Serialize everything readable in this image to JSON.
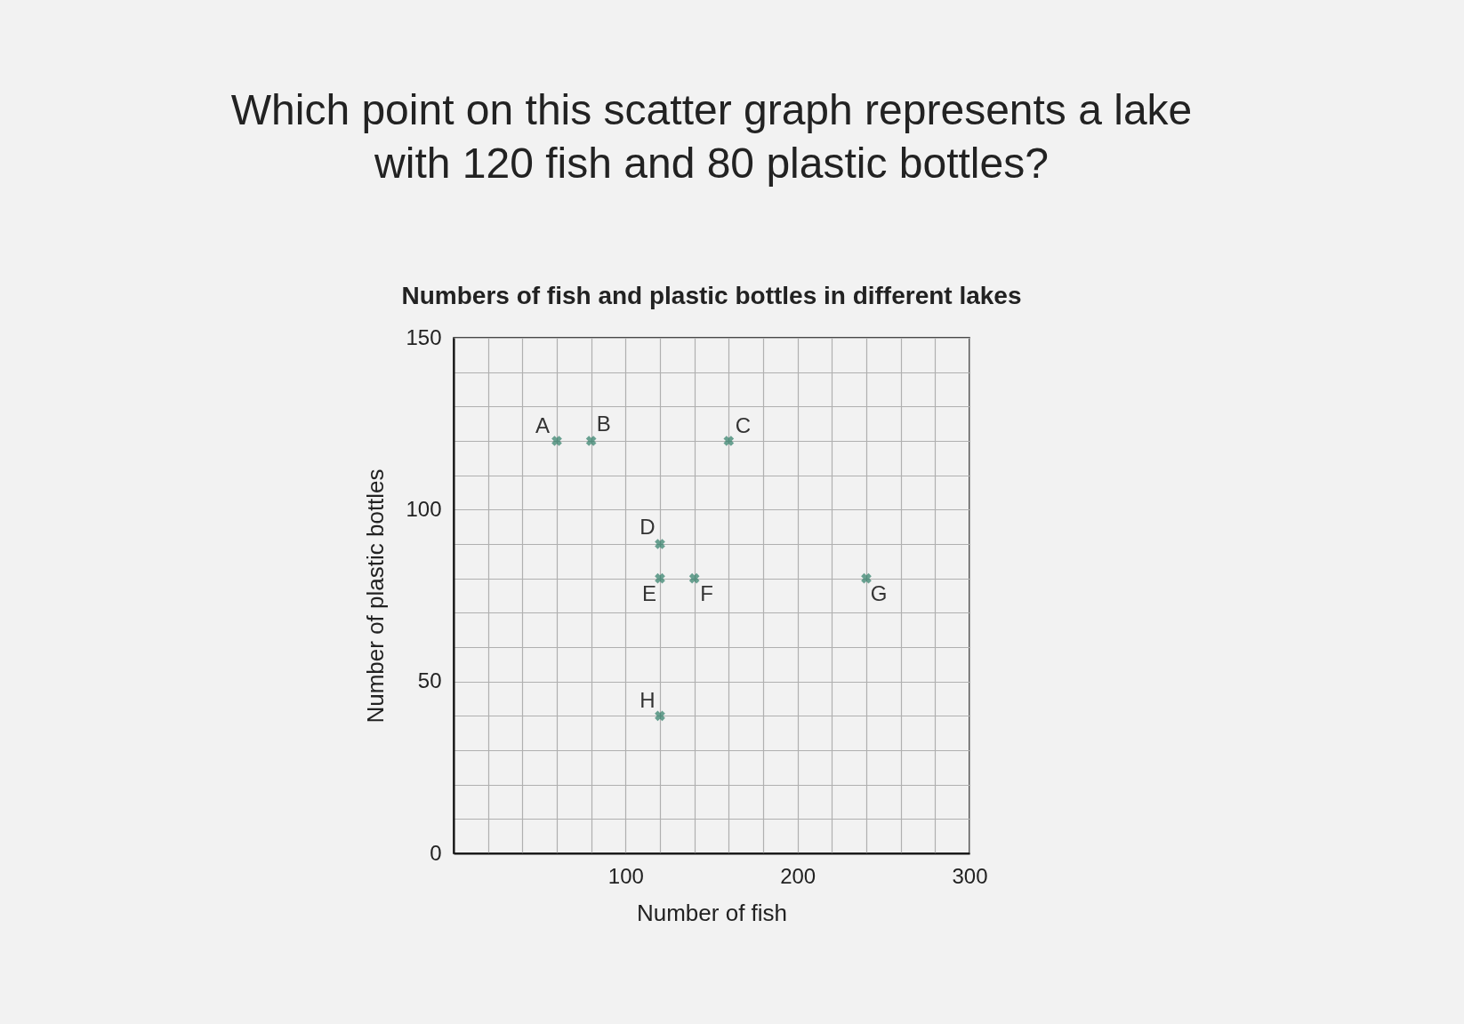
{
  "chart_data": {
    "type": "scatter",
    "title": "Which point on this scatter graph represents a lake with 120 fish and 80 plastic bottles?",
    "subtitle": "Numbers of fish and plastic bottles in different lakes",
    "xlabel": "Number of fish",
    "ylabel": "Number of plastic bottles",
    "x": [
      60,
      80,
      160,
      120,
      120,
      140,
      240,
      120
    ],
    "series": [
      {
        "color": "#2e7d66",
        "values": [
          120,
          120,
          120,
          90,
          80,
          80,
          80,
          40
        ]
      }
    ],
    "marker": "cross",
    "grid": true,
    "xlim": [
      0,
      300
    ],
    "ylim": [
      0,
      150
    ],
    "xticks": [
      {
        "value": 0,
        "label": null
      },
      {
        "value": 20,
        "label": null
      },
      {
        "value": 40,
        "label": null
      },
      {
        "value": 60,
        "label": null
      },
      {
        "value": 80,
        "label": null
      },
      100,
      {
        "value": 120,
        "label": null
      },
      {
        "value": 140,
        "label": null
      },
      {
        "value": 160,
        "label": null
      },
      {
        "value": 180,
        "label": null
      },
      200,
      {
        "value": 220,
        "label": null
      },
      {
        "value": 240,
        "label": null
      },
      {
        "value": 260,
        "label": null
      },
      {
        "value": 280,
        "label": null
      },
      300
    ],
    "yticks": [
      0,
      {
        "value": 10,
        "label": null
      },
      {
        "value": 20,
        "label": null
      },
      {
        "value": 30,
        "label": null
      },
      {
        "value": 40,
        "label": null
      },
      50,
      {
        "value": 60,
        "label": null
      },
      {
        "value": 70,
        "label": null
      },
      {
        "value": 80,
        "label": null
      },
      {
        "value": 90,
        "label": null
      },
      100,
      {
        "value": 110,
        "label": null
      },
      {
        "value": 120,
        "label": null
      },
      {
        "value": 130,
        "label": null
      },
      {
        "value": 140,
        "label": null
      },
      150
    ],
    "annotations": [
      {
        "text": "A",
        "x": 60,
        "y": 120
      },
      {
        "text": "B",
        "x": 80,
        "y": 120
      },
      {
        "text": "C",
        "x": 160,
        "y": 120
      },
      {
        "text": "D",
        "x": 120,
        "y": 90
      },
      {
        "text": "E",
        "x": 120,
        "y": 80
      },
      {
        "text": "F",
        "x": 140,
        "y": 80
      },
      {
        "text": "G",
        "x": 240,
        "y": 80
      },
      {
        "text": "H",
        "x": 120,
        "y": 40
      }
    ]
  }
}
